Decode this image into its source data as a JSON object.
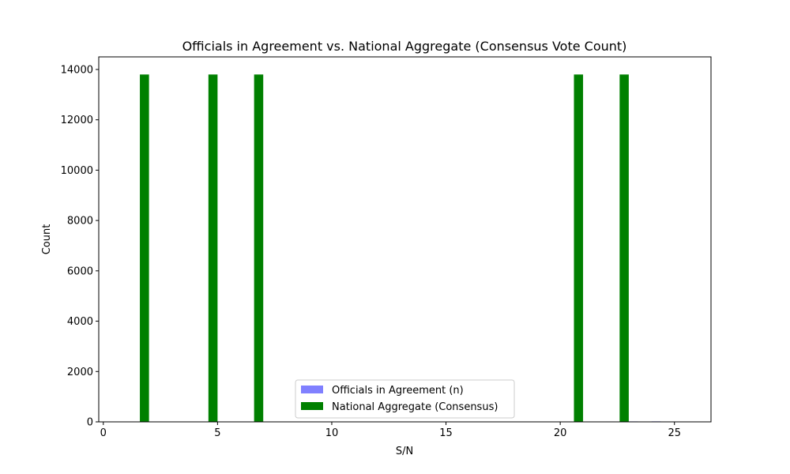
{
  "chart_data": {
    "type": "bar",
    "title": "Officials in Agreement vs. National Aggregate (Consensus Vote Count)",
    "xlabel": "S/N",
    "ylabel": "Count",
    "xlim": [
      -0.2,
      26.6
    ],
    "ylim": [
      0,
      14500
    ],
    "xticks": [
      0,
      5,
      10,
      15,
      20,
      25
    ],
    "yticks": [
      0,
      2000,
      4000,
      6000,
      8000,
      10000,
      12000,
      14000
    ],
    "grid": false,
    "legend_position": "lower-center",
    "bar_width": 0.4,
    "x": [
      1,
      2,
      3,
      4,
      5,
      6,
      7,
      8,
      9,
      10,
      11,
      12,
      13,
      14,
      15,
      16,
      17,
      18,
      19,
      20,
      21,
      22,
      23,
      24,
      25
    ],
    "series": [
      {
        "name": "Officials in Agreement (n)",
        "color": "#8080ff",
        "offset": 0.2,
        "values": [
          0,
          12,
          0,
          15,
          12,
          16,
          12,
          0,
          10,
          0,
          8,
          0,
          6,
          0,
          0,
          0,
          8,
          10,
          0,
          12,
          14,
          16,
          18,
          20,
          12
        ]
      },
      {
        "name": "National Aggregate (Consensus)",
        "color": "#008000",
        "offset": -0.2,
        "values": [
          0,
          13800,
          0,
          0,
          13800,
          0,
          13800,
          0,
          0,
          0,
          0,
          0,
          0,
          0,
          0,
          0,
          0,
          0,
          0,
          0,
          13800,
          0,
          13800,
          0,
          0
        ]
      }
    ]
  }
}
